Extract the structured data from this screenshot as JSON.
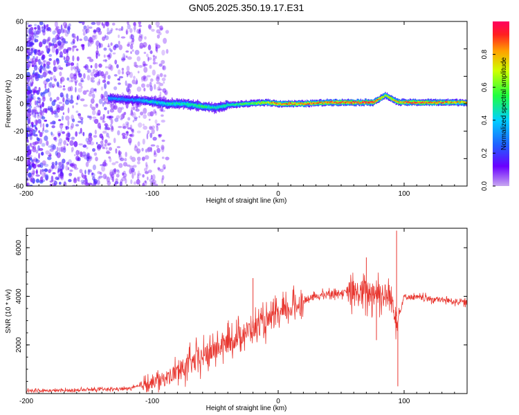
{
  "title": "GN05.2025.350.19.17.E31",
  "colors": {
    "snr_line": "#e8362f",
    "axis": "#000000",
    "background": "#ffffff"
  },
  "chart_data": [
    {
      "type": "heatmap",
      "name": "spectrogram",
      "xlabel": "Height of straight line (km)",
      "ylabel": "Frequency (Hz)",
      "xlim": [
        -200,
        150
      ],
      "ylim": [
        -60,
        60
      ],
      "x_ticks": [
        -200,
        -100,
        0,
        100
      ],
      "y_ticks": [
        -60,
        -40,
        -20,
        0,
        20,
        40,
        60
      ],
      "noise_region_x": [
        -200,
        -88
      ],
      "band": [
        {
          "x": -135,
          "freq": 4,
          "amp": 0.35
        },
        {
          "x": -120,
          "freq": 3,
          "amp": 0.3
        },
        {
          "x": -105,
          "freq": 2,
          "amp": 0.4
        },
        {
          "x": -90,
          "freq": 0,
          "amp": 0.45
        },
        {
          "x": -75,
          "freq": 0,
          "amp": 0.5
        },
        {
          "x": -60,
          "freq": -2,
          "amp": 0.55
        },
        {
          "x": -50,
          "freq": -3,
          "amp": 0.45
        },
        {
          "x": -40,
          "freq": -1,
          "amp": 0.5
        },
        {
          "x": -25,
          "freq": 0,
          "amp": 0.6
        },
        {
          "x": -10,
          "freq": 1,
          "amp": 0.75
        },
        {
          "x": 0,
          "freq": 0,
          "amp": 0.9
        },
        {
          "x": 20,
          "freq": 0,
          "amp": 0.85
        },
        {
          "x": 40,
          "freq": 1,
          "amp": 0.9
        },
        {
          "x": 60,
          "freq": 1,
          "amp": 0.95
        },
        {
          "x": 75,
          "freq": 1,
          "amp": 1.0
        },
        {
          "x": 85,
          "freq": 6,
          "amp": 0.7
        },
        {
          "x": 95,
          "freq": 1,
          "amp": 0.85
        },
        {
          "x": 110,
          "freq": 1,
          "amp": 0.95
        },
        {
          "x": 130,
          "freq": 1,
          "amp": 0.85
        },
        {
          "x": 150,
          "freq": 1,
          "amp": 0.8
        }
      ],
      "colorbar": {
        "label": "Normalized spectral amplitude",
        "range": [
          0,
          1
        ],
        "ticks": [
          "0.0",
          "0.2",
          "0.4",
          "0.6",
          "0.8"
        ],
        "tick_values": [
          0,
          0.2,
          0.4,
          0.6,
          0.8
        ]
      }
    },
    {
      "type": "line",
      "name": "snr",
      "xlabel": "Height of straight line (km)",
      "ylabel": "SNR (10 * v/v)",
      "xlim": [
        -200,
        150
      ],
      "ylim": [
        0,
        6800
      ],
      "x_ticks": [
        -200,
        -100,
        0,
        100
      ],
      "y_ticks": [
        2000,
        4000,
        6000
      ],
      "series": [
        {
          "name": "SNR",
          "x": [
            -200,
            -150,
            -120,
            -110,
            -100,
            -90,
            -80,
            -70,
            -60,
            -50,
            -40,
            -30,
            -20,
            -10,
            0,
            10,
            20,
            30,
            40,
            50,
            60,
            70,
            80,
            85,
            90,
            95,
            100,
            110,
            120,
            130,
            140,
            150
          ],
          "values": [
            100,
            150,
            200,
            300,
            450,
            600,
            900,
            1200,
            1500,
            1800,
            2100,
            2400,
            2700,
            2900,
            3200,
            3500,
            3800,
            4000,
            4100,
            4150,
            4100,
            4150,
            4200,
            4000,
            3900,
            3000,
            4000,
            3950,
            3900,
            3850,
            3800,
            3750
          ]
        }
      ],
      "spikes": [
        {
          "x": -20,
          "y": 4750
        },
        {
          "x": 70,
          "y": 5600
        },
        {
          "x": 94,
          "y": 6700
        },
        {
          "x": 95,
          "y": 300
        },
        {
          "x": 78,
          "y": 2200
        }
      ]
    }
  ]
}
